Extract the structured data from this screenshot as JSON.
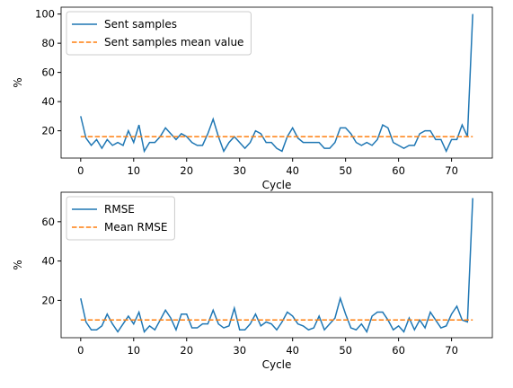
{
  "chart_data": [
    {
      "type": "line",
      "x_label": "Cycle",
      "y_label": "%",
      "x": [
        0,
        1,
        2,
        3,
        4,
        5,
        6,
        7,
        8,
        9,
        10,
        11,
        12,
        13,
        14,
        15,
        16,
        17,
        18,
        19,
        20,
        21,
        22,
        23,
        24,
        25,
        26,
        27,
        28,
        29,
        30,
        31,
        32,
        33,
        34,
        35,
        36,
        37,
        38,
        39,
        40,
        41,
        42,
        43,
        44,
        45,
        46,
        47,
        48,
        49,
        50,
        51,
        52,
        53,
        54,
        55,
        56,
        57,
        58,
        59,
        60,
        61,
        62,
        63,
        64,
        65,
        66,
        67,
        68,
        69,
        70,
        71,
        72,
        73,
        74
      ],
      "series": [
        {
          "name": "Sent samples",
          "color": "#1f77b4",
          "linestyle": "solid",
          "values": [
            30,
            15,
            10,
            14,
            8,
            14,
            10,
            12,
            10,
            20,
            12,
            24,
            6,
            12,
            12,
            16,
            22,
            18,
            14,
            18,
            16,
            12,
            10,
            10,
            18,
            28,
            16,
            6,
            12,
            16,
            12,
            8,
            12,
            20,
            18,
            12,
            12,
            8,
            6,
            16,
            22,
            15,
            12,
            12,
            12,
            12,
            8,
            8,
            12,
            22,
            22,
            18,
            12,
            10,
            12,
            10,
            14,
            24,
            22,
            12,
            10,
            8,
            10,
            10,
            18,
            20,
            20,
            14,
            14,
            6,
            14,
            14,
            24,
            16,
            100
          ]
        },
        {
          "name": "Sent samples mean value",
          "color": "#ff7f0e",
          "linestyle": "dashed",
          "values": [
            16,
            16,
            16,
            16,
            16,
            16,
            16,
            16,
            16,
            16,
            16,
            16,
            16,
            16,
            16,
            16,
            16,
            16,
            16,
            16,
            16,
            16,
            16,
            16,
            16,
            16,
            16,
            16,
            16,
            16,
            16,
            16,
            16,
            16,
            16,
            16,
            16,
            16,
            16,
            16,
            16,
            16,
            16,
            16,
            16,
            16,
            16,
            16,
            16,
            16,
            16,
            16,
            16,
            16,
            16,
            16,
            16,
            16,
            16,
            16,
            16,
            16,
            16,
            16,
            16,
            16,
            16,
            16,
            16,
            16,
            16,
            16,
            16,
            16,
            16
          ]
        }
      ],
      "xlim": [
        -3.7,
        77.7
      ],
      "xticks": [
        0,
        10,
        20,
        30,
        40,
        50,
        60,
        70
      ],
      "ylim": [
        1.3,
        104.7
      ],
      "yticks": [
        20,
        40,
        60,
        80,
        100
      ],
      "legend": "upper left"
    },
    {
      "type": "line",
      "x_label": "Cycle",
      "y_label": "%",
      "x": [
        0,
        1,
        2,
        3,
        4,
        5,
        6,
        7,
        8,
        9,
        10,
        11,
        12,
        13,
        14,
        15,
        16,
        17,
        18,
        19,
        20,
        21,
        22,
        23,
        24,
        25,
        26,
        27,
        28,
        29,
        30,
        31,
        32,
        33,
        34,
        35,
        36,
        37,
        38,
        39,
        40,
        41,
        42,
        43,
        44,
        45,
        46,
        47,
        48,
        49,
        50,
        51,
        52,
        53,
        54,
        55,
        56,
        57,
        58,
        59,
        60,
        61,
        62,
        63,
        64,
        65,
        66,
        67,
        68,
        69,
        70,
        71,
        72,
        73,
        74
      ],
      "series": [
        {
          "name": "RMSE",
          "color": "#1f77b4",
          "linestyle": "solid",
          "values": [
            21,
            9,
            5,
            5,
            7,
            13,
            8,
            4,
            8,
            12,
            8,
            14,
            4,
            7,
            5,
            10,
            15,
            11,
            5,
            13,
            13,
            6,
            6,
            8,
            8,
            15,
            8,
            6,
            7,
            16,
            5,
            5,
            8,
            13,
            7,
            9,
            8,
            5,
            9,
            14,
            12,
            8,
            7,
            5,
            6,
            12,
            5,
            8,
            11,
            21,
            13,
            6,
            5,
            8,
            4,
            12,
            14,
            14,
            10,
            5,
            7,
            4,
            11,
            5,
            10,
            6,
            14,
            10,
            6,
            7,
            13,
            17,
            10,
            9,
            72
          ]
        },
        {
          "name": "Mean RMSE",
          "color": "#ff7f0e",
          "linestyle": "dashed",
          "values": [
            10,
            10,
            10,
            10,
            10,
            10,
            10,
            10,
            10,
            10,
            10,
            10,
            10,
            10,
            10,
            10,
            10,
            10,
            10,
            10,
            10,
            10,
            10,
            10,
            10,
            10,
            10,
            10,
            10,
            10,
            10,
            10,
            10,
            10,
            10,
            10,
            10,
            10,
            10,
            10,
            10,
            10,
            10,
            10,
            10,
            10,
            10,
            10,
            10,
            10,
            10,
            10,
            10,
            10,
            10,
            10,
            10,
            10,
            10,
            10,
            10,
            10,
            10,
            10,
            10,
            10,
            10,
            10,
            10,
            10,
            10,
            10,
            10,
            10,
            10
          ]
        }
      ],
      "xlim": [
        -3.7,
        77.7
      ],
      "xticks": [
        0,
        10,
        20,
        30,
        40,
        50,
        60,
        70
      ],
      "ylim": [
        1,
        75
      ],
      "yticks": [
        20,
        40,
        60
      ],
      "legend": "upper left"
    }
  ]
}
